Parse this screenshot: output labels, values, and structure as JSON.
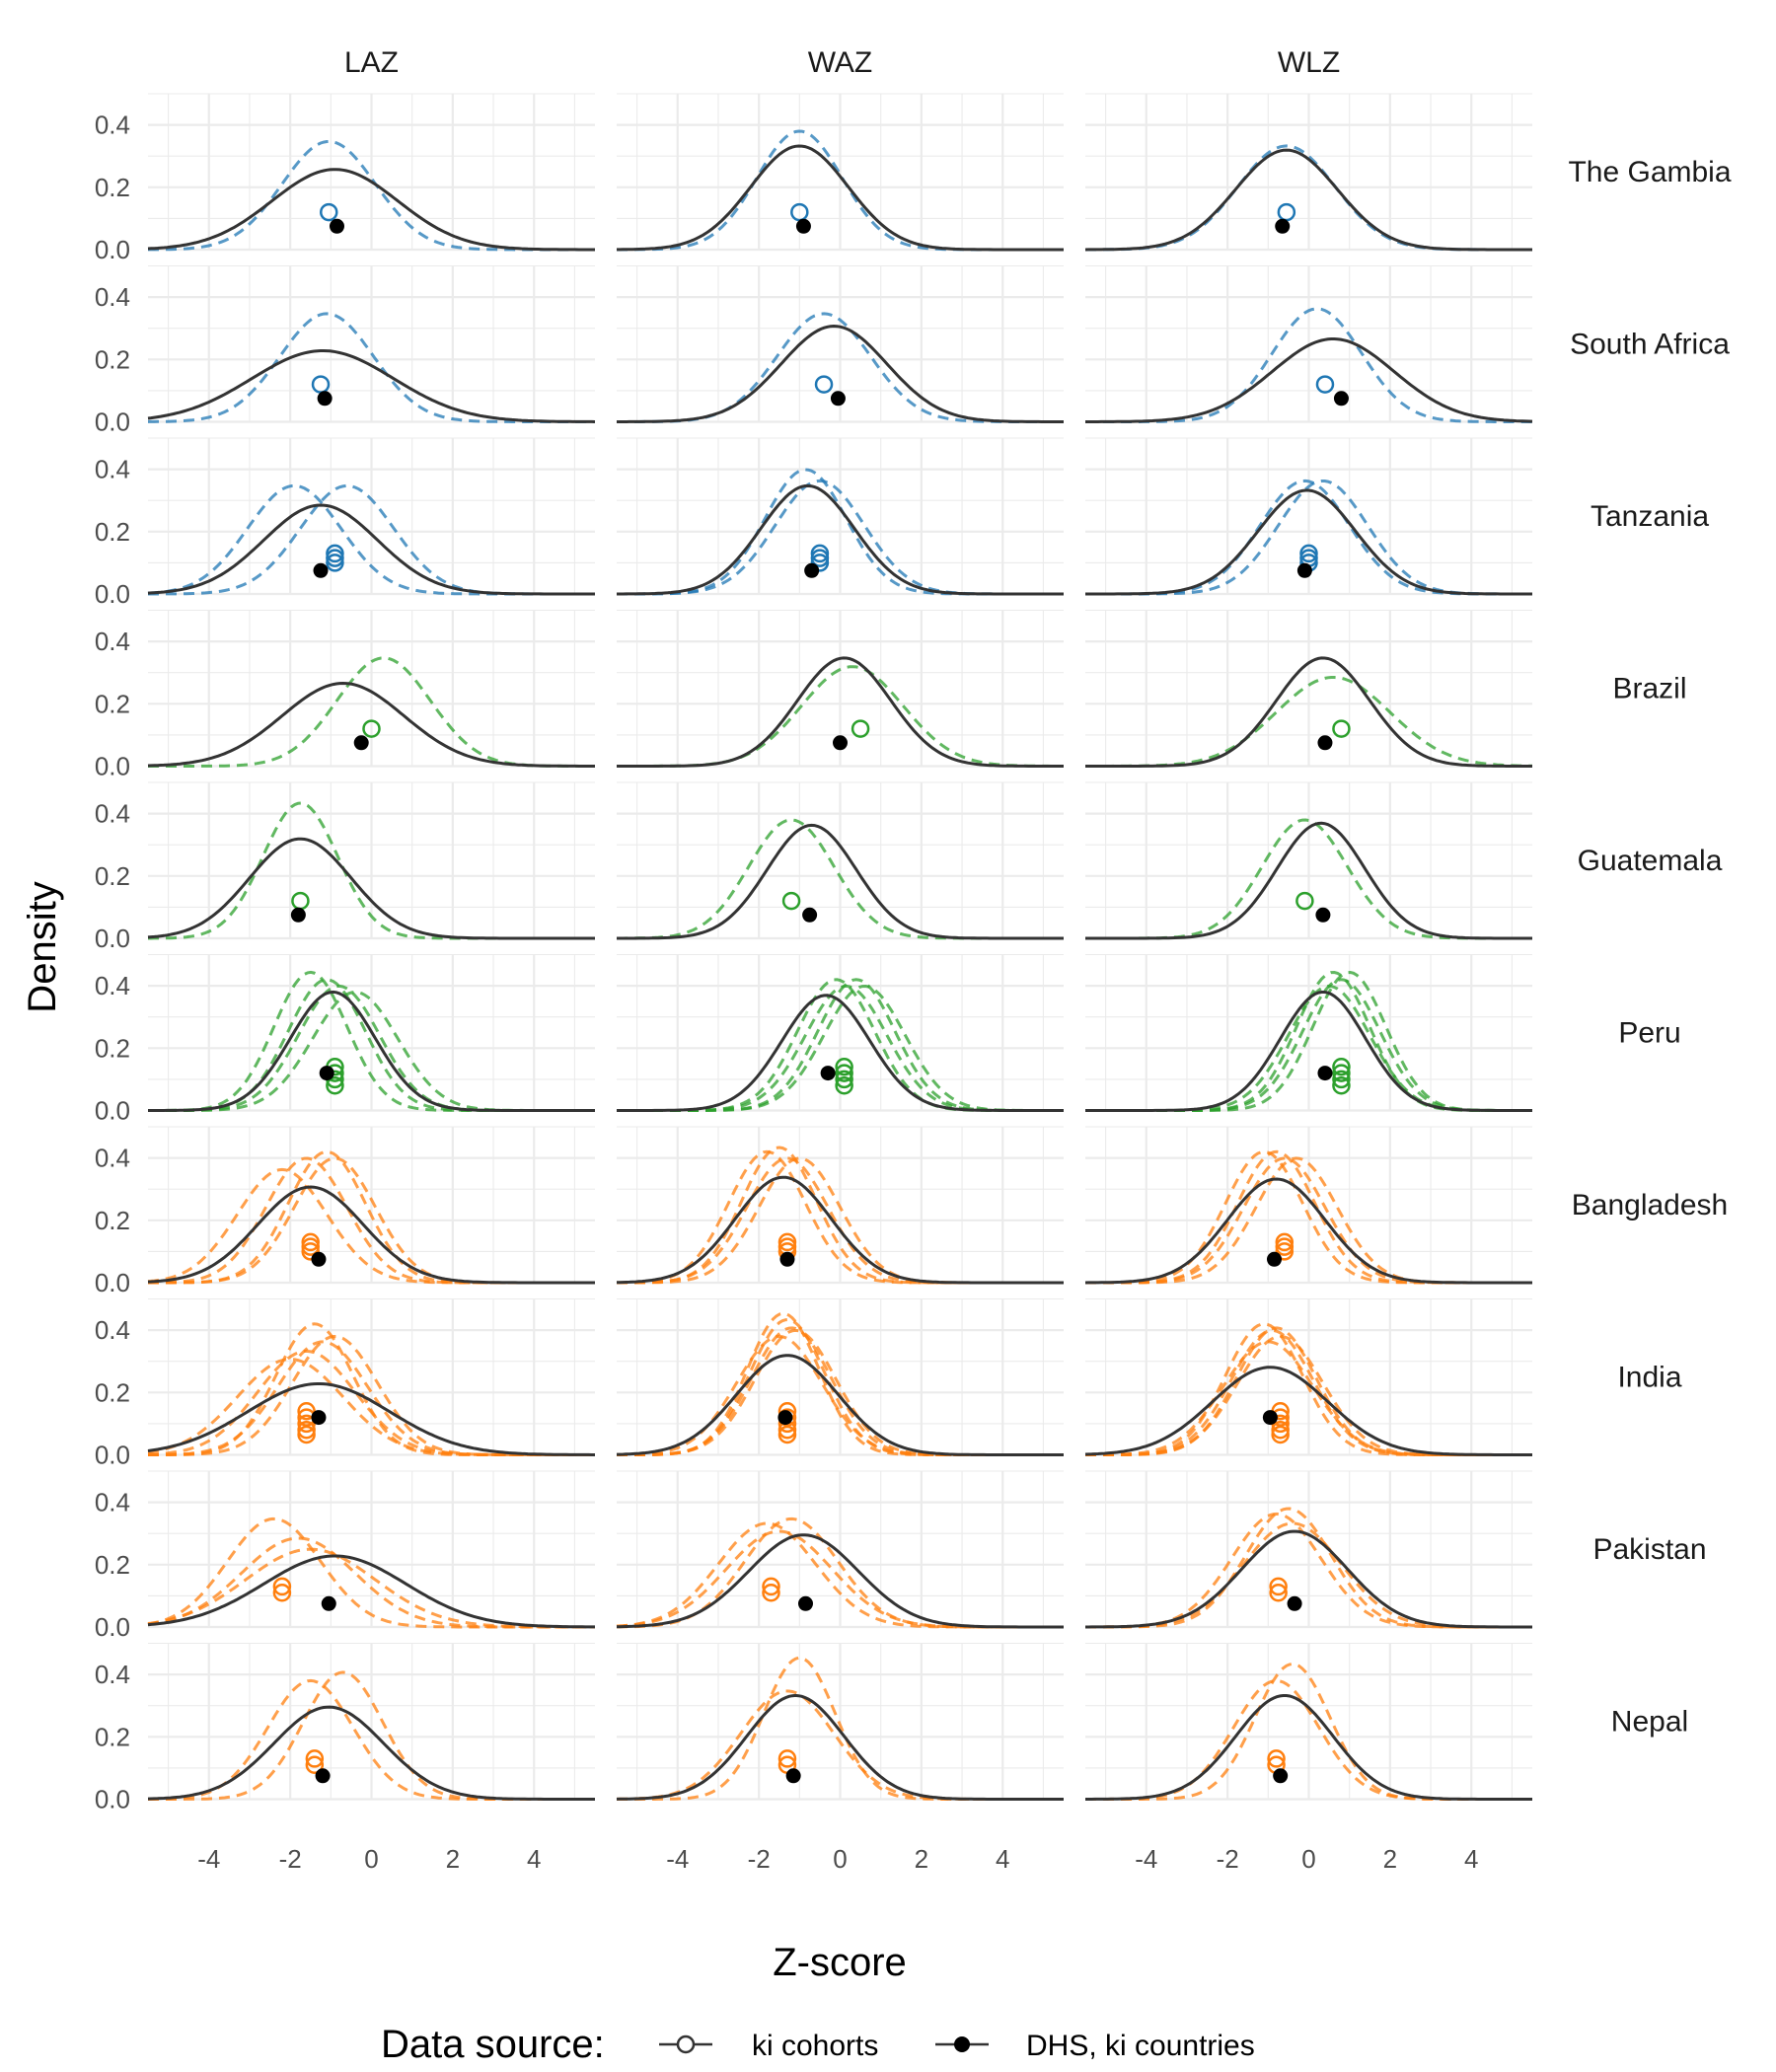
{
  "chart_data": {
    "type": "line",
    "xlabel": "Z-score",
    "ylabel": "Density",
    "xlim": [
      -5.5,
      5.5
    ],
    "ylim": [
      0,
      0.5
    ],
    "xticks": [
      -4,
      -2,
      0,
      2,
      4
    ],
    "yticks": [
      0.0,
      0.2,
      0.4
    ],
    "ytick_labels": [
      "0.0",
      "0.2",
      "0.4"
    ],
    "grid": true,
    "columns": [
      "LAZ",
      "WAZ",
      "WLZ"
    ],
    "legend": {
      "title": "Data source:",
      "position": "bottom",
      "items": [
        {
          "label": "ki cohorts",
          "marker": "open-circle",
          "line": "dashed"
        },
        {
          "label": "DHS, ki countries",
          "marker": "filled-circle",
          "line": "solid"
        }
      ]
    },
    "colors": {
      "Africa": "#1f77b4",
      "Latin America": "#2ca02c",
      "South Asia": "#ff7f0e",
      "DHS": "#333333"
    },
    "rows": [
      {
        "country": "The Gambia",
        "color": "#1f77b4",
        "panels": [
          {
            "dhs": {
              "mean": -0.9,
              "sd": 1.55
            },
            "cohorts": [
              {
                "mean": -1.05,
                "sd": 1.15
              }
            ],
            "ki_means": [
              -1.05
            ],
            "dhs_mean": -0.85
          },
          {
            "dhs": {
              "mean": -1.0,
              "sd": 1.2
            },
            "cohorts": [
              {
                "mean": -1.0,
                "sd": 1.05
              }
            ],
            "ki_means": [
              -1.0
            ],
            "dhs_mean": -0.9
          },
          {
            "dhs": {
              "mean": -0.55,
              "sd": 1.25
            },
            "cohorts": [
              {
                "mean": -0.55,
                "sd": 1.2
              }
            ],
            "ki_means": [
              -0.55
            ],
            "dhs_mean": -0.65
          }
        ]
      },
      {
        "country": "South Africa",
        "color": "#1f77b4",
        "panels": [
          {
            "dhs": {
              "mean": -1.2,
              "sd": 1.75
            },
            "cohorts": [
              {
                "mean": -1.1,
                "sd": 1.15
              }
            ],
            "ki_means": [
              -1.25
            ],
            "dhs_mean": -1.15
          },
          {
            "dhs": {
              "mean": -0.15,
              "sd": 1.3
            },
            "cohorts": [
              {
                "mean": -0.4,
                "sd": 1.15
              }
            ],
            "ki_means": [
              -0.4
            ],
            "dhs_mean": -0.05
          },
          {
            "dhs": {
              "mean": 0.6,
              "sd": 1.5
            },
            "cohorts": [
              {
                "mean": 0.2,
                "sd": 1.1
              }
            ],
            "ki_means": [
              0.4
            ],
            "dhs_mean": 0.8
          }
        ]
      },
      {
        "country": "Tanzania",
        "color": "#1f77b4",
        "panels": [
          {
            "dhs": {
              "mean": -1.25,
              "sd": 1.4
            },
            "cohorts": [
              {
                "mean": -1.9,
                "sd": 1.15
              },
              {
                "mean": -0.6,
                "sd": 1.15
              }
            ],
            "ki_means": [
              -0.9,
              -0.9,
              -0.9
            ],
            "dhs_mean": -1.25
          },
          {
            "dhs": {
              "mean": -0.8,
              "sd": 1.15
            },
            "cohorts": [
              {
                "mean": -0.85,
                "sd": 1.0
              },
              {
                "mean": -0.5,
                "sd": 1.1
              }
            ],
            "ki_means": [
              -0.5,
              -0.5,
              -0.5
            ],
            "dhs_mean": -0.7
          },
          {
            "dhs": {
              "mean": -0.05,
              "sd": 1.2
            },
            "cohorts": [
              {
                "mean": -0.1,
                "sd": 1.1
              },
              {
                "mean": 0.35,
                "sd": 1.1
              }
            ],
            "ki_means": [
              0.0,
              0.0,
              0.0
            ],
            "dhs_mean": -0.1
          }
        ]
      },
      {
        "country": "Brazil",
        "color": "#2ca02c",
        "panels": [
          {
            "dhs": {
              "mean": -0.7,
              "sd": 1.5
            },
            "cohorts": [
              {
                "mean": 0.3,
                "sd": 1.15
              }
            ],
            "ki_means": [
              0.0
            ],
            "dhs_mean": -0.25
          },
          {
            "dhs": {
              "mean": 0.1,
              "sd": 1.15
            },
            "cohorts": [
              {
                "mean": 0.3,
                "sd": 1.25
              }
            ],
            "ki_means": [
              0.5
            ],
            "dhs_mean": 0.0
          },
          {
            "dhs": {
              "mean": 0.35,
              "sd": 1.15
            },
            "cohorts": [
              {
                "mean": 0.6,
                "sd": 1.4
              }
            ],
            "ki_means": [
              0.8
            ],
            "dhs_mean": 0.4
          }
        ]
      },
      {
        "country": "Guatemala",
        "color": "#2ca02c",
        "panels": [
          {
            "dhs": {
              "mean": -1.75,
              "sd": 1.25
            },
            "cohorts": [
              {
                "mean": -1.75,
                "sd": 0.92
              }
            ],
            "ki_means": [
              -1.75
            ],
            "dhs_mean": -1.8
          },
          {
            "dhs": {
              "mean": -0.7,
              "sd": 1.1
            },
            "cohorts": [
              {
                "mean": -1.2,
                "sd": 1.05
              }
            ],
            "ki_means": [
              -1.2
            ],
            "dhs_mean": -0.75
          },
          {
            "dhs": {
              "mean": 0.3,
              "sd": 1.08
            },
            "cohorts": [
              {
                "mean": -0.1,
                "sd": 1.05
              }
            ],
            "ki_means": [
              -0.1
            ],
            "dhs_mean": 0.35
          }
        ]
      },
      {
        "country": "Peru",
        "color": "#2ca02c",
        "panels": [
          {
            "dhs": {
              "mean": -0.95,
              "sd": 1.05
            },
            "cohorts": [
              {
                "mean": -1.5,
                "sd": 0.9
              },
              {
                "mean": -1.1,
                "sd": 0.95
              },
              {
                "mean": -0.8,
                "sd": 1.0
              },
              {
                "mean": -0.4,
                "sd": 1.05
              }
            ],
            "ki_means": [
              -0.9,
              -0.9,
              -0.9,
              -0.9
            ],
            "dhs_mean": -1.1
          },
          {
            "dhs": {
              "mean": -0.35,
              "sd": 1.08
            },
            "cohorts": [
              {
                "mean": -0.1,
                "sd": 0.95
              },
              {
                "mean": 0.15,
                "sd": 1.0
              },
              {
                "mean": 0.4,
                "sd": 0.95
              },
              {
                "mean": 0.6,
                "sd": 1.0
              }
            ],
            "ki_means": [
              0.1,
              0.1,
              0.1,
              0.1
            ],
            "dhs_mean": -0.3
          },
          {
            "dhs": {
              "mean": 0.35,
              "sd": 1.05
            },
            "cohorts": [
              {
                "mean": 0.6,
                "sd": 0.9
              },
              {
                "mean": 0.8,
                "sd": 0.95
              },
              {
                "mean": 1.0,
                "sd": 0.9
              },
              {
                "mean": 0.5,
                "sd": 1.0
              }
            ],
            "ki_means": [
              0.8,
              0.8,
              0.8,
              0.8
            ],
            "dhs_mean": 0.4
          }
        ]
      },
      {
        "country": "Bangladesh",
        "color": "#ff7f0e",
        "panels": [
          {
            "dhs": {
              "mean": -1.5,
              "sd": 1.3
            },
            "cohorts": [
              {
                "mean": -2.2,
                "sd": 1.1
              },
              {
                "mean": -1.6,
                "sd": 1.0
              },
              {
                "mean": -1.1,
                "sd": 0.95
              },
              {
                "mean": -0.9,
                "sd": 1.0
              }
            ],
            "ki_means": [
              -1.5,
              -1.5,
              -1.5
            ],
            "dhs_mean": -1.3
          },
          {
            "dhs": {
              "mean": -1.4,
              "sd": 1.18
            },
            "cohorts": [
              {
                "mean": -1.8,
                "sd": 0.95
              },
              {
                "mean": -1.5,
                "sd": 0.92
              },
              {
                "mean": -1.3,
                "sd": 1.0
              },
              {
                "mean": -1.0,
                "sd": 1.0
              }
            ],
            "ki_means": [
              -1.3,
              -1.3,
              -1.3
            ],
            "dhs_mean": -1.3
          },
          {
            "dhs": {
              "mean": -0.8,
              "sd": 1.2
            },
            "cohorts": [
              {
                "mean": -1.1,
                "sd": 0.95
              },
              {
                "mean": -0.8,
                "sd": 0.95
              },
              {
                "mean": -0.6,
                "sd": 1.0
              },
              {
                "mean": -0.3,
                "sd": 1.0
              }
            ],
            "ki_means": [
              -0.6,
              -0.6,
              -0.6
            ],
            "dhs_mean": -0.85
          }
        ]
      },
      {
        "country": "India",
        "color": "#ff7f0e",
        "panels": [
          {
            "dhs": {
              "mean": -1.3,
              "sd": 1.75
            },
            "cohorts": [
              {
                "mean": -2.0,
                "sd": 1.3
              },
              {
                "mean": -1.6,
                "sd": 1.2
              },
              {
                "mean": -1.4,
                "sd": 0.95
              },
              {
                "mean": -1.2,
                "sd": 1.1
              },
              {
                "mean": -0.9,
                "sd": 1.05
              }
            ],
            "ki_means": [
              -1.6,
              -1.6,
              -1.6,
              -1.6,
              -1.6
            ],
            "dhs_mean": -1.3
          },
          {
            "dhs": {
              "mean": -1.3,
              "sd": 1.25
            },
            "cohorts": [
              {
                "mean": -1.4,
                "sd": 0.88
              },
              {
                "mean": -1.3,
                "sd": 0.92
              },
              {
                "mean": -1.2,
                "sd": 0.98
              },
              {
                "mean": -1.5,
                "sd": 1.05
              },
              {
                "mean": -1.1,
                "sd": 1.0
              }
            ],
            "ki_means": [
              -1.3,
              -1.3,
              -1.3,
              -1.3,
              -1.3
            ],
            "dhs_mean": -1.35
          },
          {
            "dhs": {
              "mean": -0.95,
              "sd": 1.42
            },
            "cohorts": [
              {
                "mean": -1.1,
                "sd": 0.95
              },
              {
                "mean": -0.9,
                "sd": 1.0
              },
              {
                "mean": -0.7,
                "sd": 1.05
              },
              {
                "mean": -1.0,
                "sd": 1.1
              },
              {
                "mean": -0.8,
                "sd": 0.98
              }
            ],
            "ki_means": [
              -0.7,
              -0.7,
              -0.7,
              -0.7,
              -0.7
            ],
            "dhs_mean": -0.95
          }
        ]
      },
      {
        "country": "Pakistan",
        "color": "#ff7f0e",
        "panels": [
          {
            "dhs": {
              "mean": -0.9,
              "sd": 1.75
            },
            "cohorts": [
              {
                "mean": -2.4,
                "sd": 1.15
              },
              {
                "mean": -1.8,
                "sd": 1.4
              },
              {
                "mean": -1.5,
                "sd": 1.6
              }
            ],
            "ki_means": [
              -2.2,
              -2.2
            ],
            "dhs_mean": -1.05
          },
          {
            "dhs": {
              "mean": -0.9,
              "sd": 1.35
            },
            "cohorts": [
              {
                "mean": -1.8,
                "sd": 1.2
              },
              {
                "mean": -1.5,
                "sd": 1.3
              },
              {
                "mean": -1.2,
                "sd": 1.15
              }
            ],
            "ki_means": [
              -1.7,
              -1.7
            ],
            "dhs_mean": -0.85
          },
          {
            "dhs": {
              "mean": -0.35,
              "sd": 1.3
            },
            "cohorts": [
              {
                "mean": -0.8,
                "sd": 1.1
              },
              {
                "mean": -0.5,
                "sd": 1.05
              },
              {
                "mean": -0.4,
                "sd": 1.2
              }
            ],
            "ki_means": [
              -0.75,
              -0.75
            ],
            "dhs_mean": -0.35
          }
        ]
      },
      {
        "country": "Nepal",
        "color": "#ff7f0e",
        "panels": [
          {
            "dhs": {
              "mean": -1.05,
              "sd": 1.35
            },
            "cohorts": [
              {
                "mean": -1.5,
                "sd": 1.05
              },
              {
                "mean": -0.7,
                "sd": 0.98
              }
            ],
            "ki_means": [
              -1.4,
              -1.4
            ],
            "dhs_mean": -1.2
          },
          {
            "dhs": {
              "mean": -1.1,
              "sd": 1.2
            },
            "cohorts": [
              {
                "mean": -1.3,
                "sd": 1.15
              },
              {
                "mean": -1.0,
                "sd": 0.88
              }
            ],
            "ki_means": [
              -1.3,
              -1.3
            ],
            "dhs_mean": -1.15
          },
          {
            "dhs": {
              "mean": -0.6,
              "sd": 1.2
            },
            "cohorts": [
              {
                "mean": -0.8,
                "sd": 1.05
              },
              {
                "mean": -0.4,
                "sd": 0.92
              }
            ],
            "ki_means": [
              -0.8,
              -0.8
            ],
            "dhs_mean": -0.7
          }
        ]
      }
    ]
  }
}
